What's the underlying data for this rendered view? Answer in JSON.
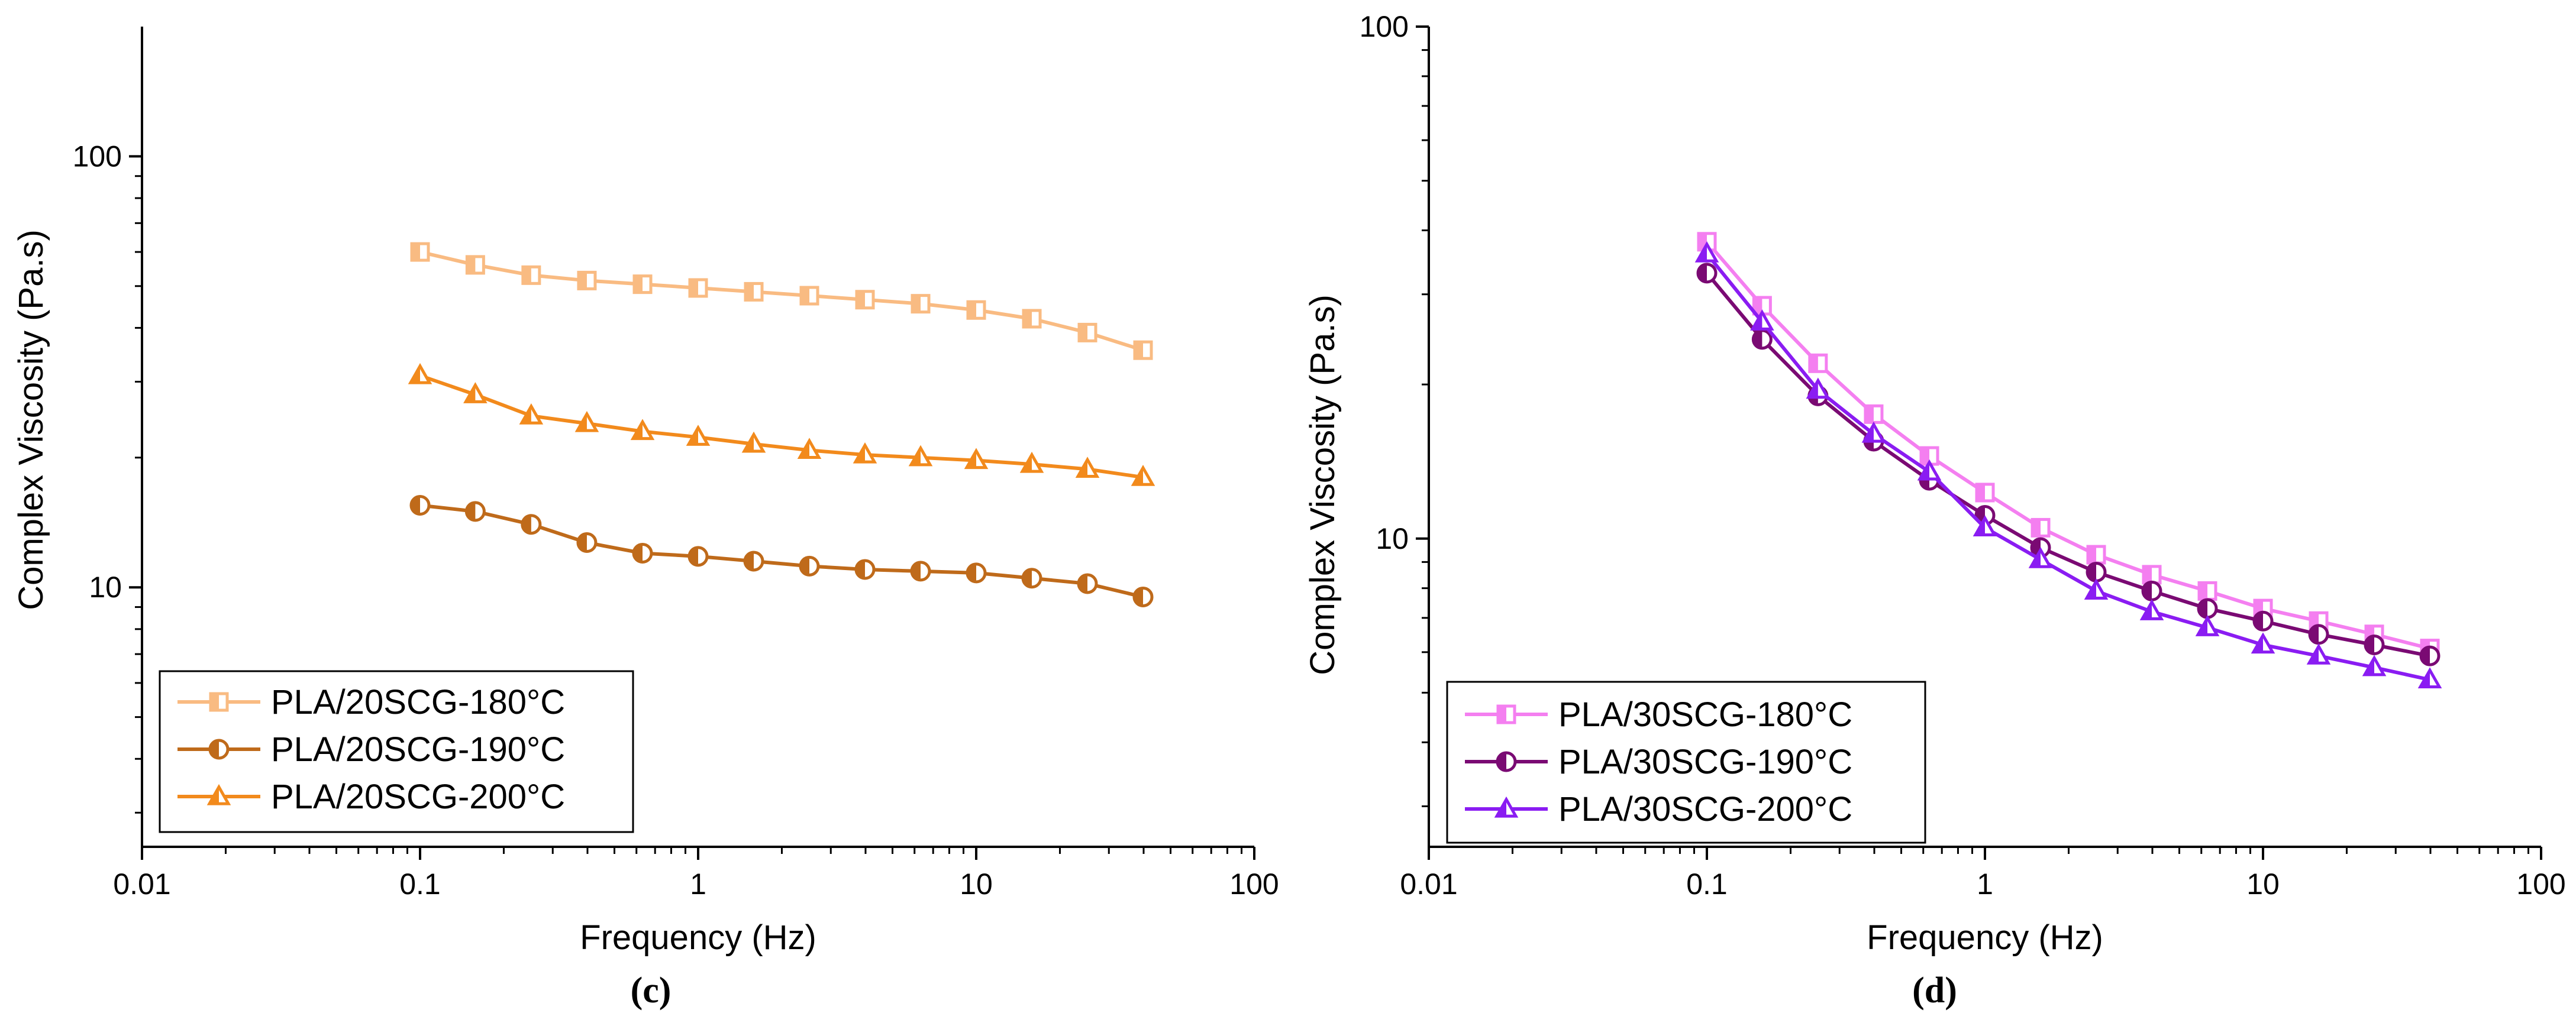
{
  "chart_data": [
    {
      "type": "line",
      "panel_label": "(c)",
      "xlabel": "Frequency (Hz)",
      "ylabel": "Complex Viscosity (Pa.s)",
      "xscale": "log",
      "yscale": "log",
      "xlim": [
        0.01,
        100
      ],
      "ylim": [
        2.5,
        200
      ],
      "x_ticks": [
        {
          "value": 0.01,
          "label": "0.01"
        },
        {
          "value": 0.1,
          "label": "0.1"
        },
        {
          "value": 1,
          "label": "1"
        },
        {
          "value": 10,
          "label": "10"
        },
        {
          "value": 100,
          "label": "100"
        }
      ],
      "y_ticks": [
        {
          "value": 10,
          "label": "10"
        },
        {
          "value": 100,
          "label": "100"
        }
      ],
      "legend_position": "bottom-left",
      "x": [
        0.1,
        0.158,
        0.251,
        0.398,
        0.631,
        1,
        1.585,
        2.512,
        3.981,
        6.31,
        10,
        15.85,
        25.12,
        39.81
      ],
      "series": [
        {
          "name": "PLA/20SCG-180°C",
          "marker": "square",
          "color": "#F9BB82",
          "values": [
            60,
            56,
            53,
            51.5,
            50.5,
            49.5,
            48.5,
            47.5,
            46.5,
            45.5,
            44,
            42,
            39,
            35.5
          ]
        },
        {
          "name": "PLA/20SCG-190°C",
          "marker": "circle-half",
          "color": "#BF6A1A",
          "values": [
            15.5,
            15,
            14,
            12.7,
            12,
            11.8,
            11.5,
            11.2,
            11,
            10.9,
            10.8,
            10.5,
            10.2,
            9.5
          ]
        },
        {
          "name": "PLA/20SCG-200°C",
          "marker": "triangle",
          "color": "#F28A1C",
          "values": [
            31,
            28,
            25,
            24,
            23,
            22.3,
            21.5,
            20.8,
            20.3,
            20,
            19.7,
            19.3,
            18.8,
            18
          ]
        }
      ]
    },
    {
      "type": "line",
      "panel_label": "(d)",
      "xlabel": "Frequency (Hz)",
      "ylabel": "Complex Viscosity (Pa.s)",
      "xscale": "log",
      "yscale": "log",
      "xlim": [
        0.01,
        100
      ],
      "ylim": [
        2.5,
        100
      ],
      "x_ticks": [
        {
          "value": 0.01,
          "label": "0.01"
        },
        {
          "value": 0.1,
          "label": "0.1"
        },
        {
          "value": 1,
          "label": "1"
        },
        {
          "value": 10,
          "label": "10"
        },
        {
          "value": 100,
          "label": "100"
        }
      ],
      "y_ticks": [
        {
          "value": 10,
          "label": "10"
        },
        {
          "value": 100,
          "label": "100"
        }
      ],
      "legend_position": "bottom-left",
      "x": [
        0.1,
        0.158,
        0.251,
        0.398,
        0.631,
        1,
        1.585,
        2.512,
        3.981,
        6.31,
        10,
        15.85,
        25.12,
        39.81
      ],
      "series": [
        {
          "name": "PLA/30SCG-180°C",
          "marker": "square",
          "color": "#F47FF0",
          "values": [
            38,
            28.5,
            22,
            17.5,
            14.5,
            12.3,
            10.5,
            9.3,
            8.5,
            7.9,
            7.3,
            6.9,
            6.5,
            6.1
          ]
        },
        {
          "name": "PLA/30SCG-190°C",
          "marker": "circle-half",
          "color": "#7A0A73",
          "values": [
            33,
            24.5,
            19,
            15.5,
            13,
            11.1,
            9.6,
            8.6,
            7.9,
            7.3,
            6.9,
            6.5,
            6.2,
            5.9
          ]
        },
        {
          "name": "PLA/30SCG-200°C",
          "marker": "triangle",
          "color": "#8A1CF2",
          "values": [
            36,
            26.5,
            19.5,
            16,
            13.5,
            10.5,
            9.1,
            7.9,
            7.2,
            6.7,
            6.2,
            5.9,
            5.6,
            5.3
          ]
        }
      ]
    }
  ]
}
